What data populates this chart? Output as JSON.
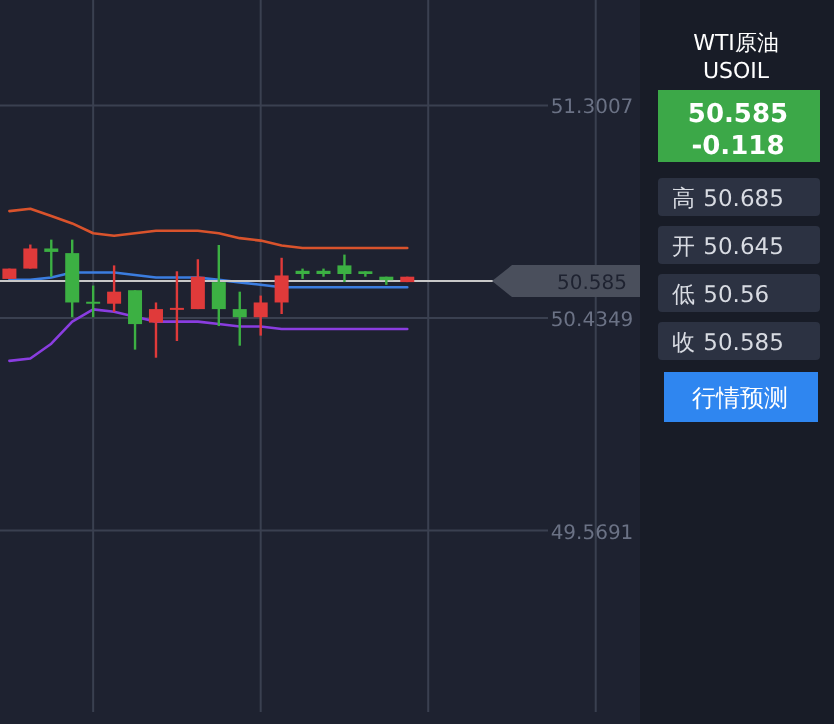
{
  "chart_data": {
    "type": "candlestick",
    "categories": [
      null,
      null,
      null,
      null,
      null,
      null,
      null,
      null,
      null,
      null,
      null,
      null,
      null,
      null,
      null,
      null,
      null,
      null,
      null,
      null,
      null,
      null,
      null,
      null,
      null,
      null,
      null,
      null,
      null,
      null
    ],
    "ohlc": [
      [
        50.594,
        50.636,
        50.594,
        50.636
      ],
      [
        50.636,
        50.734,
        50.636,
        50.718
      ],
      [
        50.718,
        50.754,
        50.603,
        50.704
      ],
      [
        50.699,
        50.754,
        50.438,
        50.498
      ],
      [
        50.501,
        50.567,
        50.438,
        50.495
      ],
      [
        50.493,
        50.649,
        50.46,
        50.542
      ],
      [
        50.548,
        50.548,
        50.306,
        50.41
      ],
      [
        50.416,
        50.498,
        50.273,
        50.471
      ],
      [
        50.471,
        50.625,
        50.341,
        50.476
      ],
      [
        50.471,
        50.674,
        50.471,
        50.603
      ],
      [
        50.581,
        50.732,
        50.402,
        50.471
      ],
      [
        50.471,
        50.542,
        50.322,
        50.438
      ],
      [
        50.438,
        50.526,
        50.363,
        50.498
      ],
      [
        50.498,
        50.68,
        50.451,
        50.608
      ],
      [
        50.627,
        50.636,
        50.594,
        50.614
      ],
      [
        50.627,
        50.636,
        50.603,
        50.614
      ],
      [
        50.649,
        50.693,
        50.581,
        50.614
      ],
      [
        50.625,
        50.625,
        50.603,
        50.614
      ],
      [
        50.603,
        50.603,
        50.57,
        50.589
      ],
      [
        50.581,
        50.603,
        50.581,
        50.603
      ],
      null,
      null,
      null,
      null,
      null,
      null,
      null,
      null,
      null,
      null
    ],
    "colors": [
      "#e03a3a",
      "#e03a3a",
      "#3cb043",
      "#3cb043",
      "#3cb043",
      "#e03a3a",
      "#3cb043",
      "#e03a3a",
      "#e03a3a",
      "#e03a3a",
      "#3cb043",
      "#3cb043",
      "#e03a3a",
      "#e03a3a",
      "#3cb043",
      "#3cb043",
      "#3cb043",
      "#3cb043",
      "#3cb043",
      "#e03a3a",
      null,
      null,
      null,
      null,
      null,
      null,
      null,
      null,
      null,
      null
    ],
    "series": [
      {
        "type": "line",
        "color": "#d9532c",
        "values": [
          50.87,
          50.88,
          50.85,
          50.82,
          50.78,
          50.77,
          50.78,
          50.79,
          50.79,
          50.79,
          50.78,
          50.76,
          50.75,
          50.73,
          50.72,
          50.72,
          50.72,
          50.72,
          50.72,
          50.72,
          null,
          null,
          null,
          null,
          null,
          null,
          null,
          null,
          null,
          null
        ]
      },
      {
        "type": "line",
        "color": "#3b7de0",
        "values": [
          50.59,
          50.59,
          50.6,
          50.62,
          50.62,
          50.62,
          50.61,
          50.6,
          50.6,
          50.6,
          50.59,
          50.58,
          50.57,
          50.56,
          50.56,
          50.56,
          50.56,
          50.56,
          50.56,
          50.56,
          null,
          null,
          null,
          null,
          null,
          null,
          null,
          null,
          null,
          null
        ]
      },
      {
        "type": "line",
        "color": "#8a3de0",
        "values": [
          50.26,
          50.27,
          50.33,
          50.42,
          50.47,
          50.46,
          50.44,
          50.42,
          50.42,
          50.42,
          50.41,
          50.4,
          50.4,
          50.39,
          50.39,
          50.39,
          50.39,
          50.39,
          50.39,
          50.39,
          null,
          null,
          null,
          null,
          null,
          null,
          null,
          null,
          null,
          null
        ]
      }
    ],
    "ylim": [
      48.83,
      51.73
    ],
    "yticks": [
      51.3007,
      50.4349,
      49.5691
    ],
    "grid": true,
    "tick_labels": "y",
    "ref_lines": [
      {
        "axis": "y",
        "value": 50.585,
        "label": "50.585",
        "color": "#c8c8c8"
      }
    ],
    "annotations": [
      "WTI原油",
      "USOIL",
      "50.585",
      "-0.118",
      "高 50.685",
      "开 50.645",
      "低 50.56",
      "收 50.585",
      "行情预测"
    ]
  }
}
